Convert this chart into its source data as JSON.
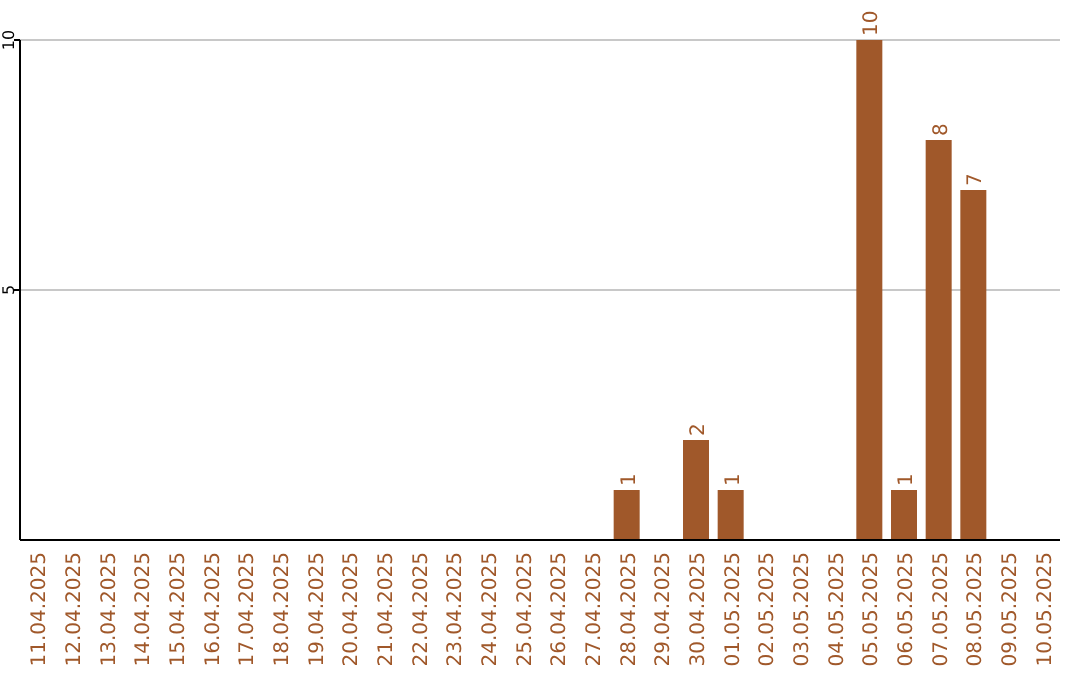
{
  "chart_data": {
    "type": "bar",
    "categories": [
      "11.04.2025",
      "12.04.2025",
      "13.04.2025",
      "14.04.2025",
      "15.04.2025",
      "16.04.2025",
      "17.04.2025",
      "18.04.2025",
      "19.04.2025",
      "20.04.2025",
      "21.04.2025",
      "22.04.2025",
      "23.04.2025",
      "24.04.2025",
      "25.04.2025",
      "26.04.2025",
      "27.04.2025",
      "28.04.2025",
      "29.04.2025",
      "30.04.2025",
      "01.05.2025",
      "02.05.2025",
      "03.05.2025",
      "04.05.2025",
      "05.05.2025",
      "06.05.2025",
      "07.05.2025",
      "08.05.2025",
      "09.05.2025",
      "10.05.2025"
    ],
    "values": [
      0,
      0,
      0,
      0,
      0,
      0,
      0,
      0,
      0,
      0,
      0,
      0,
      0,
      0,
      0,
      0,
      0,
      1,
      0,
      2,
      1,
      0,
      0,
      0,
      10,
      1,
      8,
      7,
      0,
      0
    ],
    "value_labels": [
      null,
      null,
      null,
      null,
      null,
      null,
      null,
      null,
      null,
      null,
      null,
      null,
      null,
      null,
      null,
      null,
      null,
      "1",
      null,
      "2",
      "1",
      null,
      null,
      null,
      "10",
      "1",
      "8",
      "7",
      null,
      null
    ],
    "color": "#a0582a",
    "ylim": [
      0,
      10
    ],
    "yticks": [
      5,
      10
    ],
    "grid": "y"
  }
}
